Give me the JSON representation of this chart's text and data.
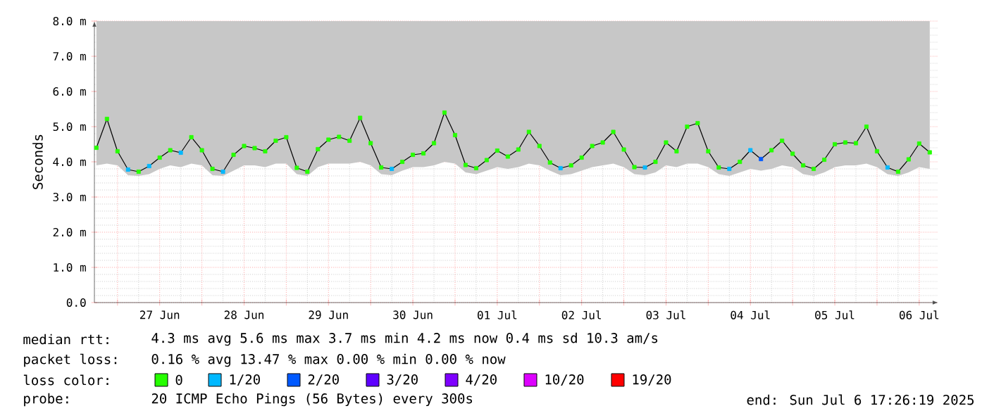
{
  "chart_data": {
    "type": "line",
    "ylabel": "Seconds",
    "xlim": [
      "2025-06-26T17:26",
      "2025-07-06T17:26"
    ],
    "xticks": [
      {
        "value": "2025-06-27T00:00",
        "label": null
      },
      {
        "value": "2025-06-27T12:00",
        "label": "27 Jun"
      },
      {
        "value": "2025-06-28T00:00",
        "label": null
      },
      {
        "value": "2025-06-28T12:00",
        "label": "28 Jun"
      },
      {
        "value": "2025-06-29T00:00",
        "label": null
      },
      {
        "value": "2025-06-29T12:00",
        "label": "29 Jun"
      },
      {
        "value": "2025-06-30T00:00",
        "label": null
      },
      {
        "value": "2025-06-30T12:00",
        "label": "30 Jun"
      },
      {
        "value": "2025-07-01T00:00",
        "label": null
      },
      {
        "value": "2025-07-01T12:00",
        "label": "01 Jul"
      },
      {
        "value": "2025-07-02T00:00",
        "label": null
      },
      {
        "value": "2025-07-02T12:00",
        "label": "02 Jul"
      },
      {
        "value": "2025-07-03T00:00",
        "label": null
      },
      {
        "value": "2025-07-03T12:00",
        "label": "03 Jul"
      },
      {
        "value": "2025-07-04T00:00",
        "label": null
      },
      {
        "value": "2025-07-04T12:00",
        "label": "04 Jul"
      },
      {
        "value": "2025-07-05T00:00",
        "label": null
      },
      {
        "value": "2025-07-05T12:00",
        "label": "05 Jul"
      },
      {
        "value": "2025-07-06T00:00",
        "label": null
      },
      {
        "value": "2025-07-06T12:00",
        "label": "06 Jul"
      }
    ],
    "ylim": [
      0,
      8
    ],
    "yticks": [
      {
        "value": 0,
        "label": "0.0"
      },
      {
        "value": 1,
        "label": "1.0 m"
      },
      {
        "value": 2,
        "label": "2.0 m"
      },
      {
        "value": 3,
        "label": "3.0 m"
      },
      {
        "value": 4,
        "label": "4.0 m"
      },
      {
        "value": 5,
        "label": "5.0 m"
      },
      {
        "value": 6,
        "label": "6.0 m"
      },
      {
        "value": 7,
        "label": "7.0 m"
      },
      {
        "value": 8,
        "label": "8.0 m"
      }
    ],
    "grid": true,
    "legend": "bottom",
    "legend_title": "loss color:",
    "x": [
      "2025-06-26T18:00",
      "2025-06-26T21:00",
      "2025-06-27T00:00",
      "2025-06-27T03:00",
      "2025-06-27T06:00",
      "2025-06-27T09:00",
      "2025-06-27T12:00",
      "2025-06-27T15:00",
      "2025-06-27T18:00",
      "2025-06-27T21:00",
      "2025-06-28T00:00",
      "2025-06-28T03:00",
      "2025-06-28T06:00",
      "2025-06-28T09:00",
      "2025-06-28T12:00",
      "2025-06-28T15:00",
      "2025-06-28T18:00",
      "2025-06-28T21:00",
      "2025-06-29T00:00",
      "2025-06-29T03:00",
      "2025-06-29T06:00",
      "2025-06-29T09:00",
      "2025-06-29T12:00",
      "2025-06-29T15:00",
      "2025-06-29T18:00",
      "2025-06-29T21:00",
      "2025-06-30T00:00",
      "2025-06-30T03:00",
      "2025-06-30T06:00",
      "2025-06-30T09:00",
      "2025-06-30T12:00",
      "2025-06-30T15:00",
      "2025-06-30T18:00",
      "2025-06-30T21:00",
      "2025-07-01T00:00",
      "2025-07-01T03:00",
      "2025-07-01T06:00",
      "2025-07-01T09:00",
      "2025-07-01T12:00",
      "2025-07-01T15:00",
      "2025-07-01T18:00",
      "2025-07-01T21:00",
      "2025-07-02T00:00",
      "2025-07-02T03:00",
      "2025-07-02T06:00",
      "2025-07-02T09:00",
      "2025-07-02T12:00",
      "2025-07-02T15:00",
      "2025-07-02T18:00",
      "2025-07-02T21:00",
      "2025-07-03T00:00",
      "2025-07-03T03:00",
      "2025-07-03T06:00",
      "2025-07-03T09:00",
      "2025-07-03T12:00",
      "2025-07-03T15:00",
      "2025-07-03T18:00",
      "2025-07-03T21:00",
      "2025-07-04T00:00",
      "2025-07-04T03:00",
      "2025-07-04T06:00",
      "2025-07-04T09:00",
      "2025-07-04T12:00",
      "2025-07-04T15:00",
      "2025-07-04T18:00",
      "2025-07-04T21:00",
      "2025-07-05T00:00",
      "2025-07-05T03:00",
      "2025-07-05T06:00",
      "2025-07-05T09:00",
      "2025-07-05T12:00",
      "2025-07-05T15:00",
      "2025-07-05T18:00",
      "2025-07-05T21:00",
      "2025-07-06T00:00",
      "2025-07-06T03:00",
      "2025-07-06T06:00",
      "2025-07-06T09:00",
      "2025-07-06T12:00",
      "2025-07-06T15:00"
    ],
    "series": [
      {
        "color": "#000000",
        "values": [
          4.4,
          5.22,
          4.3,
          3.78,
          3.72,
          3.88,
          4.12,
          4.33,
          4.26,
          4.7,
          4.33,
          3.8,
          3.72,
          4.2,
          4.45,
          4.39,
          4.3,
          4.6,
          4.7,
          3.83,
          3.72,
          4.36,
          4.63,
          4.71,
          4.6,
          5.25,
          4.53,
          3.84,
          3.8,
          4.0,
          4.2,
          4.24,
          4.53,
          5.4,
          4.76,
          3.91,
          3.82,
          4.05,
          4.32,
          4.15,
          4.35,
          4.85,
          4.45,
          3.98,
          3.82,
          3.9,
          4.12,
          4.45,
          4.55,
          4.85,
          4.35,
          3.85,
          3.84,
          4.0,
          4.55,
          4.3,
          5.0,
          5.1,
          4.3,
          3.84,
          3.8,
          4.0,
          4.33,
          4.08,
          4.33,
          4.6,
          4.23,
          3.9,
          3.8,
          4.06,
          4.5,
          4.55,
          4.53,
          5.0,
          4.3,
          3.84,
          3.72,
          4.07,
          4.52,
          4.27
        ],
        "lower": [
          3.9,
          3.95,
          3.9,
          3.62,
          3.6,
          3.65,
          3.8,
          3.9,
          3.85,
          3.95,
          3.9,
          3.62,
          3.6,
          3.75,
          3.9,
          3.9,
          3.85,
          3.95,
          3.95,
          3.65,
          3.6,
          3.85,
          3.95,
          3.95,
          3.95,
          4.0,
          3.9,
          3.65,
          3.62,
          3.75,
          3.85,
          3.85,
          3.9,
          4.0,
          3.95,
          3.7,
          3.65,
          3.75,
          3.85,
          3.8,
          3.85,
          3.95,
          3.9,
          3.75,
          3.62,
          3.65,
          3.75,
          3.85,
          3.9,
          3.95,
          3.85,
          3.65,
          3.62,
          3.7,
          3.9,
          3.85,
          3.95,
          3.95,
          3.85,
          3.65,
          3.6,
          3.7,
          3.8,
          3.75,
          3.8,
          3.9,
          3.85,
          3.65,
          3.6,
          3.7,
          3.85,
          3.9,
          3.9,
          3.95,
          3.85,
          3.65,
          3.6,
          3.7,
          3.85,
          3.8
        ],
        "upper": [
          8,
          8,
          8,
          8,
          8,
          8,
          8,
          8,
          8,
          8,
          8,
          8,
          8,
          8,
          8,
          8,
          8,
          8,
          8,
          8,
          8,
          8,
          8,
          8,
          8,
          8,
          8,
          8,
          8,
          8,
          8,
          8,
          8,
          8,
          8,
          8,
          8,
          8,
          8,
          8,
          8,
          8,
          8,
          8,
          8,
          8,
          8,
          8,
          8,
          8,
          8,
          8,
          8,
          8,
          8,
          8,
          8,
          8,
          8,
          8,
          8,
          8,
          8,
          8,
          8,
          8,
          8,
          8,
          8,
          8,
          8,
          8,
          8,
          8,
          8,
          8,
          8,
          8,
          8,
          8
        ]
      },
      {
        "type": "scatter",
        "marker": "square",
        "name": "0",
        "color": "#26ff00",
        "values": [
          4.4,
          5.22,
          4.3,
          null,
          3.72,
          null,
          4.12,
          4.33,
          null,
          4.7,
          4.33,
          3.8,
          null,
          4.2,
          4.45,
          4.39,
          4.3,
          4.6,
          4.7,
          3.83,
          3.72,
          4.36,
          4.63,
          4.71,
          4.6,
          5.25,
          4.53,
          3.84,
          null,
          4.0,
          4.2,
          4.24,
          4.53,
          5.4,
          4.76,
          3.91,
          3.82,
          4.05,
          4.32,
          4.15,
          4.35,
          4.85,
          4.45,
          3.98,
          null,
          3.9,
          4.12,
          4.45,
          4.55,
          4.85,
          4.35,
          3.85,
          null,
          4.0,
          4.55,
          4.3,
          5.0,
          5.1,
          4.3,
          3.84,
          null,
          4.0,
          null,
          null,
          4.33,
          4.6,
          4.23,
          3.9,
          3.8,
          4.06,
          4.5,
          4.55,
          4.53,
          5.0,
          4.3,
          null,
          3.72,
          4.07,
          4.52,
          4.27
        ]
      },
      {
        "type": "scatter",
        "marker": "square",
        "name": "1/20",
        "color": "#00b8ff",
        "values": [
          null,
          null,
          null,
          3.78,
          null,
          3.88,
          null,
          null,
          4.26,
          null,
          null,
          null,
          3.72,
          null,
          null,
          null,
          null,
          null,
          null,
          null,
          null,
          null,
          null,
          null,
          null,
          null,
          null,
          null,
          3.8,
          null,
          null,
          null,
          null,
          null,
          null,
          null,
          null,
          null,
          null,
          null,
          null,
          null,
          null,
          null,
          3.82,
          null,
          null,
          null,
          null,
          null,
          null,
          null,
          3.84,
          null,
          null,
          null,
          null,
          null,
          null,
          null,
          3.8,
          null,
          4.33,
          null,
          null,
          null,
          null,
          null,
          null,
          null,
          null,
          null,
          null,
          null,
          null,
          3.84,
          null,
          null,
          null,
          null
        ]
      },
      {
        "type": "scatter",
        "marker": "square",
        "name": "2/20",
        "color": "#0059ff",
        "values": [
          null,
          null,
          null,
          null,
          null,
          null,
          null,
          null,
          null,
          null,
          null,
          null,
          null,
          null,
          null,
          null,
          null,
          null,
          null,
          null,
          null,
          null,
          null,
          null,
          null,
          null,
          null,
          null,
          null,
          null,
          null,
          null,
          null,
          null,
          null,
          null,
          null,
          null,
          null,
          null,
          null,
          null,
          null,
          null,
          null,
          null,
          null,
          null,
          null,
          null,
          null,
          null,
          null,
          null,
          null,
          null,
          null,
          null,
          null,
          null,
          null,
          null,
          null,
          4.08,
          null,
          null,
          null,
          null,
          null,
          null,
          null,
          null,
          null,
          null,
          null,
          null,
          null,
          null,
          null,
          null
        ]
      },
      {
        "type": "scatter",
        "marker": "square",
        "name": "3/20",
        "color": "#5e00ff",
        "values": [
          null,
          null,
          null,
          null,
          null,
          null,
          null,
          null,
          null,
          null,
          null,
          null,
          null,
          null,
          null,
          null,
          null,
          null,
          null,
          null,
          null,
          null,
          null,
          null,
          null,
          null,
          null,
          null,
          null,
          null,
          null,
          null,
          null,
          null,
          null,
          null,
          null,
          null,
          null,
          null,
          null,
          null,
          null,
          null,
          null,
          null,
          null,
          null,
          null,
          null,
          null,
          null,
          null,
          null,
          null,
          null,
          null,
          null,
          null,
          null,
          null,
          null,
          null,
          null,
          null,
          null,
          null,
          null,
          null,
          null,
          null,
          null,
          null,
          null,
          null,
          null,
          null,
          null,
          null,
          null
        ]
      },
      {
        "type": "scatter",
        "marker": "square",
        "name": "4/20",
        "color": "#7e00ff",
        "values": [
          null,
          null,
          null,
          null,
          null,
          null,
          null,
          null,
          null,
          null,
          null,
          null,
          null,
          null,
          null,
          null,
          null,
          null,
          null,
          null,
          null,
          null,
          null,
          null,
          null,
          null,
          null,
          null,
          null,
          null,
          null,
          null,
          null,
          null,
          null,
          null,
          null,
          null,
          null,
          null,
          null,
          null,
          null,
          null,
          null,
          null,
          null,
          null,
          null,
          null,
          null,
          null,
          null,
          null,
          null,
          null,
          null,
          null,
          null,
          null,
          null,
          null,
          null,
          null,
          null,
          null,
          null,
          null,
          null,
          null,
          null,
          null,
          null,
          null,
          null,
          null,
          null,
          null,
          null,
          null
        ]
      },
      {
        "type": "scatter",
        "marker": "square",
        "name": "10/20",
        "color": "#dd00ff",
        "values": [
          null,
          null,
          null,
          null,
          null,
          null,
          null,
          null,
          null,
          null,
          null,
          null,
          null,
          null,
          null,
          null,
          null,
          null,
          null,
          null,
          null,
          null,
          null,
          null,
          null,
          null,
          null,
          null,
          null,
          null,
          null,
          null,
          null,
          null,
          null,
          null,
          null,
          null,
          null,
          null,
          null,
          null,
          null,
          null,
          null,
          null,
          null,
          null,
          null,
          null,
          null,
          null,
          null,
          null,
          null,
          null,
          null,
          null,
          null,
          null,
          null,
          null,
          null,
          null,
          null,
          null,
          null,
          null,
          null,
          null,
          null,
          null,
          null,
          null,
          null,
          null,
          null,
          null,
          null,
          null
        ]
      },
      {
        "type": "scatter",
        "marker": "square",
        "name": "19/20",
        "color": "#ff0000",
        "values": [
          null,
          null,
          null,
          null,
          null,
          null,
          null,
          null,
          null,
          null,
          null,
          null,
          null,
          null,
          null,
          null,
          null,
          null,
          null,
          null,
          null,
          null,
          null,
          null,
          null,
          null,
          null,
          null,
          null,
          null,
          null,
          null,
          null,
          null,
          null,
          null,
          null,
          null,
          null,
          null,
          null,
          null,
          null,
          null,
          null,
          null,
          null,
          null,
          null,
          null,
          null,
          null,
          null,
          null,
          null,
          null,
          null,
          null,
          null,
          null,
          null,
          null,
          null,
          null,
          null,
          null,
          null,
          null,
          null,
          null,
          null,
          null,
          null,
          null,
          null,
          null,
          null,
          null,
          null,
          null
        ]
      }
    ],
    "annotations": [
      "median rtt:",
      "4.3 ms avg  5.6 ms max  3.7 ms min  4.2 ms now  0.4 ms sd  10.3   am/s",
      "packet loss:",
      "0.16 % avg  13.47 % max  0.00 % min  0.00 % now",
      "probe:",
      "20 ICMP Echo Pings (56 Bytes) every 300s",
      "end: Sun Jul  6 17:26:19 2025"
    ]
  }
}
